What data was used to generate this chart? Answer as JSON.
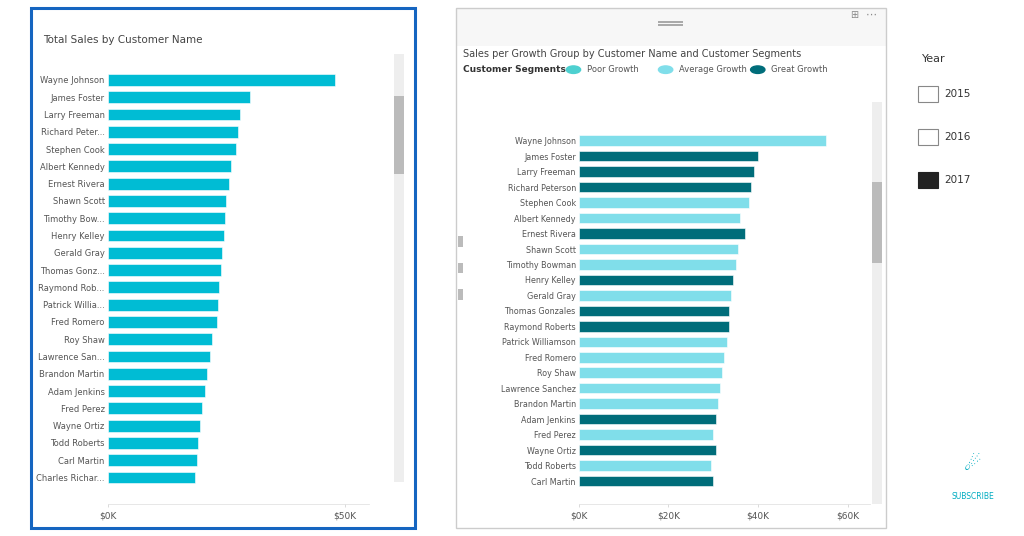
{
  "chart1_title": "Total Sales by Customer Name",
  "chart2_title": "Sales per Growth Group by Customer Name and Customer Segments",
  "customers1": [
    "Wayne Johnson",
    "James Foster",
    "Larry Freeman",
    "Richard Peter...",
    "Stephen Cook",
    "Albert Kennedy",
    "Ernest Rivera",
    "Shawn Scott",
    "Timothy Bow...",
    "Henry Kelley",
    "Gerald Gray",
    "Thomas Gonz...",
    "Raymond Rob...",
    "Patrick Willia...",
    "Fred Romero",
    "Roy Shaw",
    "Lawrence San...",
    "Brandon Martin",
    "Adam Jenkins",
    "Fred Perez",
    "Wayne Ortiz",
    "Todd Roberts",
    "Carl Martin",
    "Charles Richar..."
  ],
  "customers2": [
    "Wayne Johnson",
    "James Foster",
    "Larry Freeman",
    "Richard Peterson",
    "Stephen Cook",
    "Albert Kennedy",
    "Ernest Rivera",
    "Shawn Scott",
    "Timothy Bowman",
    "Henry Kelley",
    "Gerald Gray",
    "Thomas Gonzales",
    "Raymond Roberts",
    "Patrick Williamson",
    "Fred Romero",
    "Roy Shaw",
    "Lawrence Sanchez",
    "Brandon Martin",
    "Adam Jenkins",
    "Fred Perez",
    "Wayne Ortiz",
    "Todd Roberts",
    "Carl Martin"
  ],
  "sales1": [
    48000,
    30000,
    28000,
    27500,
    27000,
    26000,
    25500,
    25000,
    24800,
    24500,
    24200,
    23800,
    23500,
    23200,
    23000,
    22000,
    21500,
    21000,
    20500,
    20000,
    19500,
    19000,
    18800,
    18500
  ],
  "sales2": [
    55000,
    40000,
    39000,
    38500,
    38000,
    36000,
    37000,
    35500,
    35000,
    34500,
    34000,
    33500,
    33500,
    33000,
    32500,
    32000,
    31500,
    31000,
    30500,
    30000,
    30500,
    29500,
    30000
  ],
  "segments": [
    "Average Growth",
    "Great Growth",
    "Great Growth",
    "Great Growth",
    "Average Growth",
    "Average Growth",
    "Great Growth",
    "Average Growth",
    "Average Growth",
    "Great Growth",
    "Average Growth",
    "Great Growth",
    "Great Growth",
    "Average Growth",
    "Average Growth",
    "Average Growth",
    "Average Growth",
    "Average Growth",
    "Great Growth",
    "Average Growth",
    "Great Growth",
    "Average Growth",
    "Great Growth"
  ],
  "color_teal": "#00BCD4",
  "color_poor": "#4DD0D0",
  "color_avg": "#80DEEA",
  "color_great": "#006D7A",
  "bg_white": "#FFFFFF",
  "bg_outer": "#FFFFFF",
  "border_blue": "#1565C0",
  "text_color": "#555555",
  "title_color": "#444444",
  "year_legend": [
    "2015",
    "2016",
    "2017"
  ],
  "subscribe_color": "#00ACC1",
  "scrollbar_track": "#EEEEEE",
  "scrollbar_thumb": "#BBBBBB",
  "panel_border": "#CCCCCC",
  "panel_header_bg": "#F7F7F7"
}
